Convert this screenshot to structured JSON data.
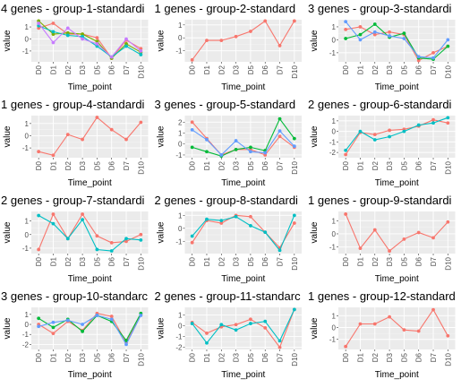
{
  "chart_data": [
    {
      "type": "line",
      "title": "4  genes -   group-1-standardi",
      "xlabel": "Time_point",
      "ylabel": "value",
      "categories": [
        "D0",
        "D1",
        "D2",
        "D3",
        "D5",
        "D6",
        "D7",
        "D10"
      ],
      "ylim": [
        -1.9,
        1.6
      ],
      "yticks": [
        1,
        0,
        -1
      ],
      "series": [
        {
          "color": "#F8766D",
          "values": [
            0.9,
            1.3,
            0.4,
            0.4,
            0.1,
            -1.6,
            -0.1,
            -0.8
          ]
        },
        {
          "color": "#7CAE00",
          "values": [
            1.5,
            0.4,
            0.5,
            0.4,
            -0.2,
            -1.6,
            -0.4,
            -1.1
          ]
        },
        {
          "color": "#00BFC4",
          "values": [
            1.1,
            0.6,
            0.3,
            0.2,
            -0.6,
            -1.5,
            -0.6,
            -1.3
          ]
        },
        {
          "color": "#C77CFF",
          "values": [
            1.3,
            -0.3,
            0.9,
            0.0,
            -0.4,
            -1.5,
            0.0,
            -1.0
          ]
        }
      ]
    },
    {
      "type": "line",
      "title": "1  genes -   group-2-standard",
      "xlabel": "Time_point",
      "ylabel": "value",
      "categories": [
        "D0",
        "D1",
        "D2",
        "D3",
        "D5",
        "D6",
        "D7",
        "D10"
      ],
      "ylim": [
        -1.85,
        1.4
      ],
      "yticks": [
        1,
        0,
        -1
      ],
      "series": [
        {
          "color": "#F8766D",
          "values": [
            -1.7,
            -0.2,
            -0.2,
            0.1,
            0.5,
            1.3,
            -0.6,
            1.3
          ]
        }
      ]
    },
    {
      "type": "line",
      "title": "3  genes -   group-3-standardi",
      "xlabel": "Time_point",
      "ylabel": "value",
      "categories": [
        "D0",
        "D1",
        "D2",
        "D3",
        "D5",
        "D6",
        "D7",
        "D10"
      ],
      "ylim": [
        -1.7,
        1.55
      ],
      "yticks": [
        1,
        0,
        -1
      ],
      "series": [
        {
          "color": "#F8766D",
          "values": [
            0.8,
            1.0,
            0.4,
            0.6,
            0.4,
            -1.6,
            -1.0,
            -0.5
          ]
        },
        {
          "color": "#00BA38",
          "values": [
            0.1,
            0.4,
            1.2,
            0.2,
            0.5,
            -1.4,
            -1.5,
            -0.5
          ]
        },
        {
          "color": "#619CFF",
          "values": [
            1.4,
            0.0,
            0.6,
            0.3,
            0.1,
            -1.3,
            -1.4,
            0.0
          ]
        }
      ]
    },
    {
      "type": "line",
      "title": "1  genes -   group-4-standardi",
      "xlabel": "Time_point",
      "ylabel": "value",
      "categories": [
        "D0",
        "D1",
        "D2",
        "D3",
        "D5",
        "D6",
        "D7",
        "D10"
      ],
      "ylim": [
        -1.8,
        1.65
      ],
      "yticks": [
        1,
        0,
        -1
      ],
      "series": [
        {
          "color": "#F8766D",
          "values": [
            -1.3,
            -1.6,
            0.1,
            -0.3,
            1.5,
            0.5,
            -0.3,
            1.1
          ]
        }
      ]
    },
    {
      "type": "line",
      "title": "3  genes -   group-5-standard",
      "xlabel": "Time_point",
      "ylabel": "value",
      "categories": [
        "D0",
        "D1",
        "D2",
        "D3",
        "D5",
        "D6",
        "D7",
        "D10"
      ],
      "ylim": [
        -1.25,
        2.6
      ],
      "yticks": [
        2,
        1,
        0,
        -1
      ],
      "series": [
        {
          "color": "#F8766D",
          "values": [
            2.0,
            0.5,
            -1.0,
            -0.5,
            -0.5,
            -1.0,
            0.7,
            -0.3
          ]
        },
        {
          "color": "#00BA38",
          "values": [
            -0.3,
            -0.7,
            -1.1,
            -0.5,
            -0.3,
            -0.6,
            2.3,
            0.5
          ]
        },
        {
          "color": "#619CFF",
          "values": [
            1.3,
            0.4,
            -1.0,
            0.3,
            -0.7,
            -0.8,
            1.2,
            -0.2
          ]
        }
      ]
    },
    {
      "type": "line",
      "title": "2  genes -   group-6-standardi",
      "xlabel": "Time_point",
      "ylabel": "value",
      "categories": [
        "D0",
        "D1",
        "D2",
        "D3",
        "D5",
        "D6",
        "D7",
        "D10"
      ],
      "ylim": [
        -2.5,
        1.5
      ],
      "yticks": [
        1,
        0,
        -1,
        -2
      ],
      "series": [
        {
          "color": "#F8766D",
          "values": [
            -2.2,
            -0.1,
            -0.3,
            0.1,
            0.2,
            0.5,
            1.1,
            0.8
          ]
        },
        {
          "color": "#00BFC4",
          "values": [
            -1.8,
            0.0,
            -0.8,
            -0.5,
            0.0,
            0.6,
            0.8,
            1.3
          ]
        }
      ]
    },
    {
      "type": "line",
      "title": "2  genes -   group-7-standardi",
      "xlabel": "Time_point",
      "ylabel": "value",
      "categories": [
        "D0",
        "D1",
        "D2",
        "D3",
        "D5",
        "D6",
        "D7",
        "D10"
      ],
      "ylim": [
        -1.4,
        1.7
      ],
      "yticks": [
        1,
        0,
        -1
      ],
      "series": [
        {
          "color": "#F8766D",
          "values": [
            -1.1,
            1.5,
            -0.3,
            1.5,
            -0.1,
            -0.6,
            -0.5,
            0.0
          ]
        },
        {
          "color": "#00BFC4",
          "values": [
            1.4,
            0.8,
            -0.3,
            1.1,
            -1.1,
            -1.2,
            -0.3,
            -0.4
          ]
        }
      ]
    },
    {
      "type": "line",
      "title": "2  genes -   group-8-standardi",
      "xlabel": "Time_point",
      "ylabel": "value",
      "categories": [
        "D0",
        "D1",
        "D2",
        "D3",
        "D5",
        "D6",
        "D7",
        "D10"
      ],
      "ylim": [
        -1.95,
        1.3
      ],
      "yticks": [
        1,
        0,
        -1
      ],
      "series": [
        {
          "color": "#F8766D",
          "values": [
            -1.1,
            0.6,
            0.4,
            1.0,
            0.9,
            -0.3,
            -1.5,
            0.4
          ]
        },
        {
          "color": "#00BFC4",
          "values": [
            -0.6,
            0.7,
            0.6,
            0.9,
            0.2,
            -0.3,
            -1.7,
            1.0
          ]
        }
      ]
    },
    {
      "type": "line",
      "title": "1  genes -   group-9-standardi",
      "xlabel": "Time_point",
      "ylabel": "value",
      "categories": [
        "D0",
        "D1",
        "D2",
        "D3",
        "D5",
        "D6",
        "D7",
        "D10"
      ],
      "ylim": [
        -1.5,
        1.7
      ],
      "yticks": [
        1,
        0,
        -1
      ],
      "series": [
        {
          "color": "#F8766D",
          "values": [
            1.5,
            -1.1,
            0.3,
            -1.3,
            -0.4,
            0.1,
            -0.3,
            0.9
          ]
        }
      ]
    },
    {
      "type": "line",
      "title": "3  genes -   group-10-standarc",
      "xlabel": "Time_point",
      "ylabel": "value",
      "categories": [
        "D0",
        "D1",
        "D2",
        "D3",
        "D5",
        "D6",
        "D7",
        "D10"
      ],
      "ylim": [
        -2.5,
        1.7
      ],
      "yticks": [
        1,
        0,
        -1,
        -2
      ],
      "series": [
        {
          "color": "#F8766D",
          "values": [
            0.0,
            -0.9,
            0.3,
            -0.6,
            1.1,
            0.8,
            -1.8,
            1.0
          ]
        },
        {
          "color": "#00BA38",
          "values": [
            0.6,
            -0.3,
            0.5,
            -0.7,
            0.9,
            0.3,
            -1.6,
            1.1
          ]
        },
        {
          "color": "#619CFF",
          "values": [
            -0.2,
            0.2,
            0.4,
            0.0,
            0.9,
            0.5,
            -2.0,
            0.9
          ]
        }
      ]
    },
    {
      "type": "line",
      "title": "2  genes -   group-11-standarc",
      "xlabel": "Time_point",
      "ylabel": "value",
      "categories": [
        "D0",
        "D1",
        "D2",
        "D3",
        "D5",
        "D6",
        "D7",
        "D10"
      ],
      "ylim": [
        -2.2,
        1.7
      ],
      "yticks": [
        1,
        0,
        -1,
        -2
      ],
      "series": [
        {
          "color": "#F8766D",
          "values": [
            0.3,
            -0.7,
            -0.1,
            0.1,
            0.6,
            -0.2,
            -2.0,
            1.5
          ]
        },
        {
          "color": "#00BFC4",
          "values": [
            0.2,
            -1.6,
            0.1,
            -0.4,
            0.2,
            0.4,
            -1.4,
            1.5
          ]
        }
      ]
    },
    {
      "type": "line",
      "title": "1  genes -   group-12-standard",
      "xlabel": "Time_point",
      "ylabel": "value",
      "categories": [
        "D0",
        "D1",
        "D2",
        "D3",
        "D5",
        "D6",
        "D7",
        "D10"
      ],
      "ylim": [
        -1.85,
        1.7
      ],
      "yticks": [
        1,
        0,
        -1
      ],
      "series": [
        {
          "color": "#F8766D",
          "values": [
            -1.6,
            0.3,
            0.3,
            0.9,
            -0.2,
            -0.3,
            1.5,
            -0.7
          ]
        }
      ]
    }
  ]
}
